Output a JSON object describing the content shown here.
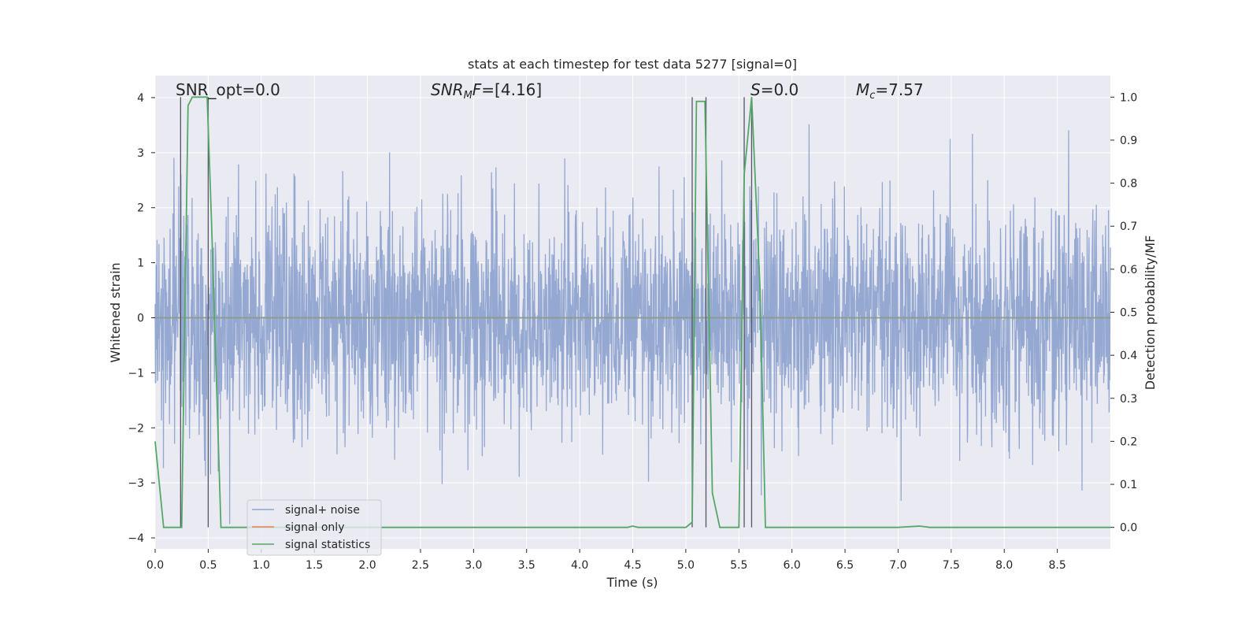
{
  "chart_data": {
    "type": "line",
    "title": "stats at each timestep for test data 5277 [signal=0]",
    "xlabel": "Time (s)",
    "ylabel": "Whitened strain",
    "y2label": "Detection probability/MF",
    "xlim": [
      0.0,
      9.0
    ],
    "ylim": [
      -4.2,
      4.4
    ],
    "y2lim": [
      -0.05,
      1.05
    ],
    "x_ticks": [
      "0.0",
      "0.5",
      "1.0",
      "1.5",
      "2.0",
      "2.5",
      "3.0",
      "3.5",
      "4.0",
      "4.5",
      "5.0",
      "5.5",
      "6.0",
      "6.5",
      "7.0",
      "7.5",
      "8.0",
      "8.5"
    ],
    "y_ticks": [
      "−4",
      "−3",
      "−2",
      "−1",
      "0",
      "1",
      "2",
      "3",
      "4"
    ],
    "y2_ticks": [
      "0.0",
      "0.1",
      "0.2",
      "0.3",
      "0.4",
      "0.5",
      "0.6",
      "0.7",
      "0.8",
      "0.9",
      "1.0"
    ],
    "grid": true,
    "legend_position": "lower-left",
    "annotations": {
      "snr_opt": "SNR_opt=0.0",
      "snr_mf_main": "SNR",
      "snr_mf_sub": "M",
      "snr_mf_rest": "F=[4.16]",
      "s_var": "S",
      "s_rest": "=0.0",
      "mc_main": "M",
      "mc_sub": "c",
      "mc_rest": "=7.57"
    },
    "series": [
      {
        "name": "signal+ noise",
        "color": "#8fa4cf",
        "description": "whitened noise, roughly N(0,1), spanning -3.7 to 3.9 across 0-9 s"
      },
      {
        "name": "signal only",
        "color": "#dd8452",
        "values_constant": 0.0
      },
      {
        "name": "signal statistics",
        "color": "#55a868",
        "axis": "right",
        "points": [
          [
            0.0,
            0.2
          ],
          [
            0.08,
            0.0
          ],
          [
            0.25,
            0.0
          ],
          [
            0.31,
            0.98
          ],
          [
            0.35,
            1.0
          ],
          [
            0.49,
            1.0
          ],
          [
            0.53,
            0.72
          ],
          [
            0.62,
            0.0
          ],
          [
            0.7,
            0.0
          ],
          [
            2.0,
            0.0
          ],
          [
            4.45,
            0.0
          ],
          [
            4.5,
            0.003
          ],
          [
            4.55,
            0.0
          ],
          [
            5.0,
            0.0
          ],
          [
            5.06,
            0.012
          ],
          [
            5.1,
            0.99
          ],
          [
            5.18,
            0.99
          ],
          [
            5.25,
            0.08
          ],
          [
            5.32,
            0.0
          ],
          [
            5.5,
            0.0
          ],
          [
            5.55,
            0.82
          ],
          [
            5.62,
            1.0
          ],
          [
            5.7,
            0.55
          ],
          [
            5.75,
            0.0
          ],
          [
            7.0,
            0.0
          ],
          [
            7.2,
            0.003
          ],
          [
            7.3,
            0.0
          ],
          [
            9.0,
            0.0
          ]
        ]
      }
    ],
    "vertical_markers": [
      0.24,
      0.5,
      5.06,
      5.19,
      5.55,
      5.62
    ]
  }
}
